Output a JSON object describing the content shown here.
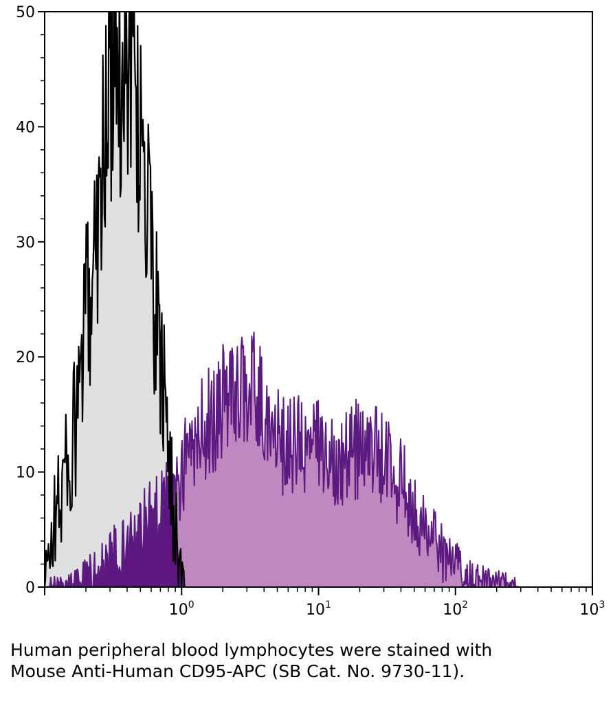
{
  "caption": "Human peripheral blood lymphocytes were stained with Mouse Anti-Human CD95-APC (SB Cat. No. 9730-11).",
  "chart_data": {
    "type": "area",
    "title": "",
    "xlabel": "",
    "ylabel": "",
    "x_scale": "log",
    "xlim": [
      0.1,
      1000
    ],
    "ylim": [
      0,
      50
    ],
    "y_ticks": [
      {
        "value": 0,
        "label": "0"
      },
      {
        "value": 10,
        "label": "10"
      },
      {
        "value": 20,
        "label": "20"
      },
      {
        "value": 30,
        "label": "30"
      },
      {
        "value": 40,
        "label": "40"
      },
      {
        "value": 50,
        "label": "50"
      }
    ],
    "x_ticks": [
      {
        "value": 1,
        "base": "10",
        "exp": "0"
      },
      {
        "value": 10,
        "base": "10",
        "exp": "1"
      },
      {
        "value": 100,
        "base": "10",
        "exp": "2"
      },
      {
        "value": 1000,
        "base": "10",
        "exp": "3"
      }
    ],
    "grid": false,
    "legend": "none",
    "colors": {
      "isotype_fill": "#e0e0e0",
      "isotype_line": "#000000",
      "stained_fill": "#c088c0",
      "stained_line": "#5a1a80",
      "overlap_fill": "#5e1580"
    },
    "series": [
      {
        "x": [
          0.1,
          0.11,
          0.12,
          0.13,
          0.14,
          0.15,
          0.16,
          0.17,
          0.18,
          0.19,
          0.2,
          0.22,
          0.24,
          0.26,
          0.28,
          0.3,
          0.33,
          0.36,
          0.4,
          0.43,
          0.46,
          0.5,
          0.55,
          0.6,
          0.65,
          0.7,
          0.75,
          0.8,
          0.85,
          0.9,
          0.95,
          1.0,
          1.05
        ],
        "y": [
          0,
          4,
          6,
          8,
          10,
          11,
          12,
          14,
          17,
          20,
          23,
          28,
          32,
          36,
          41,
          44,
          45,
          44,
          47,
          45,
          43,
          40,
          34,
          28,
          23,
          19,
          16,
          12,
          9,
          5,
          2,
          0.5,
          0
        ]
      },
      {
        "x": [
          0.1,
          0.15,
          0.2,
          0.25,
          0.3,
          0.4,
          0.5,
          0.6,
          0.7,
          0.8,
          0.9,
          1.0,
          1.2,
          1.5,
          1.8,
          2.0,
          2.5,
          3.0,
          3.5,
          4.0,
          5.0,
          6.0,
          7.0,
          8.0,
          10,
          12,
          15,
          20,
          25,
          30,
          35,
          40,
          45,
          50,
          60,
          70,
          80,
          100,
          120,
          150,
          200,
          250,
          300
        ],
        "y": [
          0,
          0.2,
          1,
          1.5,
          2.5,
          4,
          5,
          6,
          7,
          8,
          9,
          10,
          12,
          14,
          15,
          16,
          17,
          17.5,
          17,
          15,
          13,
          12,
          12.5,
          12,
          12,
          11.5,
          11.5,
          12,
          12,
          11,
          10,
          9,
          8,
          7,
          5,
          4,
          3,
          2,
          1,
          0.5,
          0.3,
          0.1,
          0
        ]
      }
    ]
  }
}
